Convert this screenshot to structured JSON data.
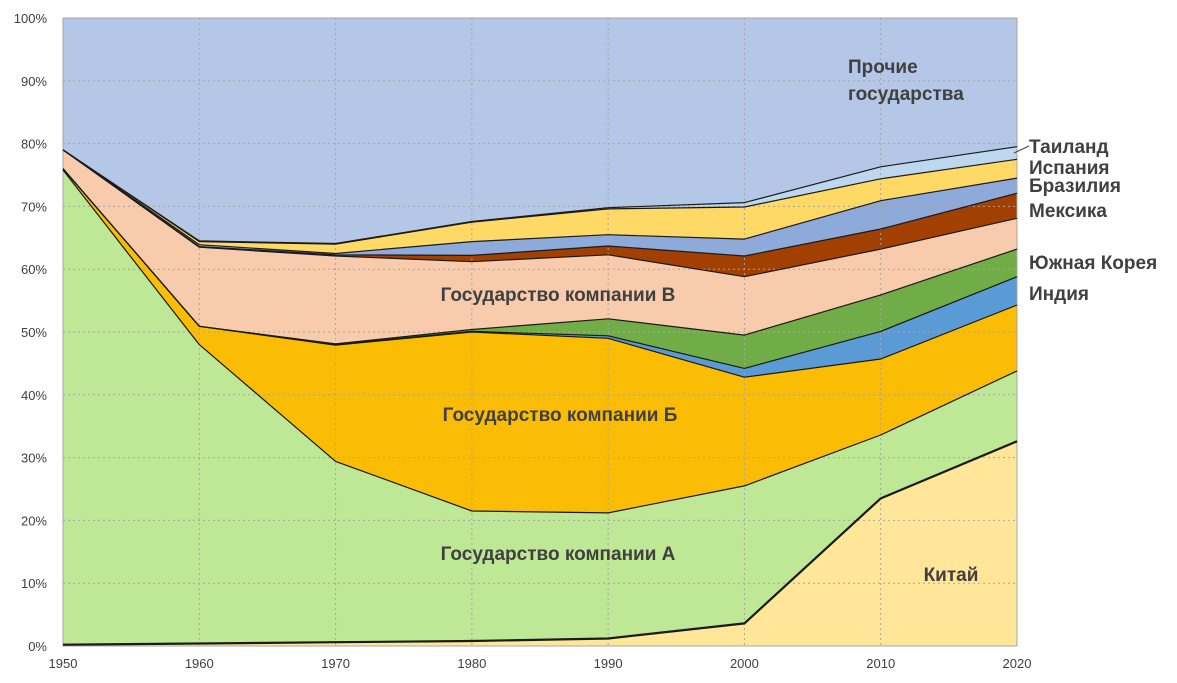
{
  "chart_data": {
    "type": "area",
    "stacked": true,
    "normalized": true,
    "x": [
      1950,
      1960,
      1970,
      1980,
      1990,
      2000,
      2010,
      2020
    ],
    "ylim": [
      0,
      100
    ],
    "yticks": [
      0,
      10,
      20,
      30,
      40,
      50,
      60,
      70,
      80,
      90,
      100
    ],
    "ytick_labels": [
      "0%",
      "10%",
      "20%",
      "30%",
      "40%",
      "50%",
      "60%",
      "70%",
      "80%",
      "90%",
      "100%"
    ],
    "xtick_labels": [
      "1950",
      "1960",
      "1970",
      "1980",
      "1990",
      "2000",
      "2010",
      "2020"
    ],
    "grid": true,
    "series": [
      {
        "name": "Китай",
        "color": "#ffe699",
        "values": [
          0.2,
          0.4,
          0.6,
          0.8,
          1.2,
          3.6,
          23.5,
          32.6
        ]
      },
      {
        "name": "Государство компании А",
        "color": "#bfe896",
        "values": [
          75.6,
          47.6,
          28.8,
          20.7,
          20.0,
          21.9,
          10.1,
          11.2
        ]
      },
      {
        "name": "Государство компании Б",
        "color": "#fbbc04",
        "values": [
          0.2,
          2.9,
          18.5,
          28.5,
          27.8,
          17.3,
          12.1,
          10.5
        ]
      },
      {
        "name": "Индия",
        "color": "#5b9bd5",
        "values": [
          0.0,
          0.0,
          0.1,
          0.1,
          0.4,
          1.4,
          4.4,
          4.5
        ]
      },
      {
        "name": "Южная Корея",
        "color": "#70ad47",
        "values": [
          0.0,
          0.0,
          0.1,
          0.3,
          2.7,
          5.3,
          5.8,
          4.4
        ]
      },
      {
        "name": "Государство компании В",
        "color": "#f8cbad",
        "values": [
          3.0,
          12.6,
          14.0,
          10.8,
          10.2,
          9.3,
          7.3,
          4.9
        ]
      },
      {
        "name": "Мексика",
        "color": "#a14000",
        "values": [
          0.0,
          0.1,
          0.2,
          1.0,
          1.4,
          3.3,
          3.2,
          4.0
        ]
      },
      {
        "name": "Бразилия",
        "color": "#8eaadb",
        "values": [
          0.0,
          0.3,
          0.2,
          2.2,
          1.8,
          2.7,
          4.5,
          2.4
        ]
      },
      {
        "name": "Испания",
        "color": "#ffd966",
        "values": [
          0.0,
          0.5,
          1.5,
          3.1,
          4.1,
          5.1,
          3.5,
          3.0
        ]
      },
      {
        "name": "Таиланд",
        "color": "#bdd7ee",
        "values": [
          0.0,
          0.1,
          0.1,
          0.1,
          0.2,
          0.7,
          1.9,
          2.0
        ]
      },
      {
        "name": "Прочие государства",
        "color": "#b4c7e7",
        "values": [
          21.0,
          35.5,
          35.9,
          32.4,
          30.2,
          29.4,
          23.7,
          20.5
        ]
      }
    ],
    "annotations": {
      "Прочие государства": [
        "Прочие",
        "государства"
      ]
    }
  }
}
